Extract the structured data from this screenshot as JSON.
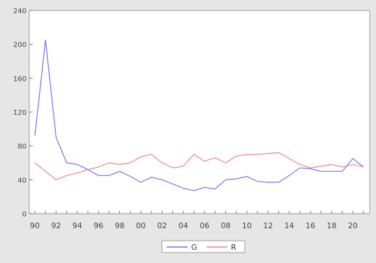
{
  "chart_data": {
    "type": "line",
    "title": "",
    "xlabel": "",
    "ylabel": "",
    "x": [
      1990,
      1991,
      1992,
      1993,
      1994,
      1995,
      1996,
      1997,
      1998,
      1999,
      2000,
      2001,
      2002,
      2003,
      2004,
      2005,
      2006,
      2007,
      2008,
      2009,
      2010,
      2011,
      2012,
      2013,
      2014,
      2015,
      2016,
      2017,
      2018,
      2019,
      2020,
      2021
    ],
    "x_tick_labels": [
      "90",
      "92",
      "94",
      "96",
      "98",
      "00",
      "02",
      "04",
      "06",
      "08",
      "10",
      "12",
      "14",
      "16",
      "18",
      "20"
    ],
    "y_ticks": [
      "0",
      "40",
      "80",
      "120",
      "160",
      "200",
      "240"
    ],
    "ylim": [
      0,
      240
    ],
    "xlim": [
      1990,
      2021
    ],
    "grid": false,
    "legend_position": "bottom-center",
    "series": [
      {
        "name": "G",
        "color": "#6f6ff2",
        "values": [
          92,
          205,
          90,
          60,
          58,
          52,
          45,
          45,
          50,
          44,
          37,
          43,
          40,
          35,
          30,
          27,
          31,
          29,
          40,
          41,
          44,
          38,
          37,
          37,
          45,
          54,
          53,
          50,
          50,
          50,
          65,
          55
        ]
      },
      {
        "name": "R",
        "color": "#f08080",
        "values": [
          60,
          50,
          40,
          45,
          48,
          52,
          55,
          60,
          58,
          60,
          67,
          70,
          60,
          54,
          56,
          70,
          62,
          66,
          60,
          68,
          70,
          70,
          71,
          72,
          65,
          58,
          54,
          56,
          58,
          55,
          58,
          55
        ]
      }
    ]
  }
}
